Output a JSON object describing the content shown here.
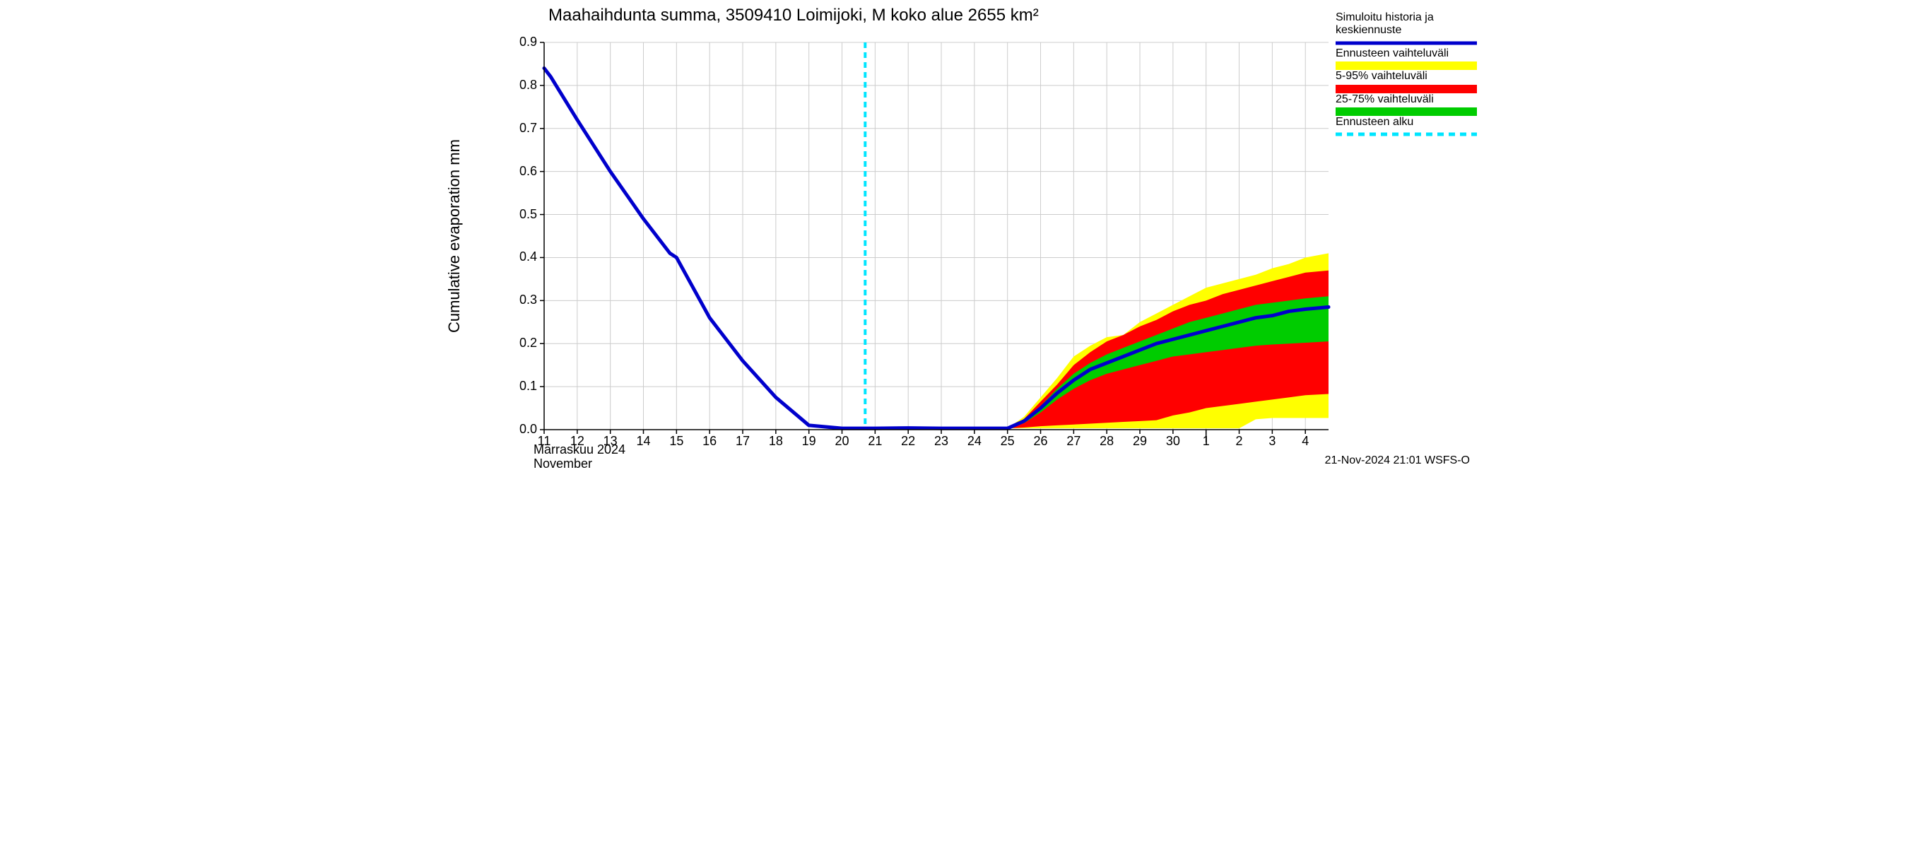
{
  "title": "Maahaihdunta summa, 3509410 Loimijoki, M koko alue 2655 km²",
  "ylabel": "Cumulative evaporation   mm",
  "x_month_fi": "Marraskuu 2024",
  "x_month_en": "November",
  "footer_timestamp": "21-Nov-2024 21:01 WSFS-O",
  "chart": {
    "type": "line_with_bands",
    "background_color": "#ffffff",
    "grid_color": "#cccccc",
    "axis_color": "#000000",
    "title_fontsize": 24,
    "label_fontsize": 18,
    "ylabel_fontsize": 22,
    "ylim": [
      0.0,
      0.9
    ],
    "yticks": [
      0.0,
      0.1,
      0.2,
      0.3,
      0.4,
      0.5,
      0.6,
      0.7,
      0.8,
      0.9
    ],
    "xlim_days": [
      11,
      34.7
    ],
    "xticks_days": [
      11,
      12,
      13,
      14,
      15,
      16,
      17,
      18,
      19,
      20,
      21,
      22,
      23,
      24,
      25,
      26,
      27,
      28,
      29,
      30,
      31,
      32,
      33,
      34
    ],
    "xtick_labels": [
      "11",
      "12",
      "13",
      "14",
      "15",
      "16",
      "17",
      "18",
      "19",
      "20",
      "21",
      "22",
      "23",
      "24",
      "25",
      "26",
      "27",
      "28",
      "29",
      "30",
      "1",
      "2",
      "3",
      "4"
    ],
    "month_boundary_day": 31,
    "forecast_start_day": 20.7,
    "forecast_line_color": "#00e5ff",
    "forecast_line_dash": "8,6",
    "forecast_line_width": 4,
    "series_blue": {
      "color": "#0000cc",
      "width": 5,
      "points": [
        [
          11.0,
          0.84
        ],
        [
          11.2,
          0.82
        ],
        [
          12.0,
          0.72
        ],
        [
          13.0,
          0.6
        ],
        [
          14.0,
          0.49
        ],
        [
          14.8,
          0.41
        ],
        [
          15.0,
          0.4
        ],
        [
          16.0,
          0.26
        ],
        [
          17.0,
          0.16
        ],
        [
          18.0,
          0.075
        ],
        [
          19.0,
          0.01
        ],
        [
          20.0,
          0.003
        ],
        [
          21.0,
          0.003
        ],
        [
          22.0,
          0.004
        ],
        [
          23.0,
          0.003
        ],
        [
          24.0,
          0.003
        ],
        [
          25.0,
          0.003
        ],
        [
          25.5,
          0.02
        ],
        [
          26.0,
          0.05
        ],
        [
          26.5,
          0.085
        ],
        [
          27.0,
          0.115
        ],
        [
          27.5,
          0.14
        ],
        [
          28.0,
          0.155
        ],
        [
          28.5,
          0.17
        ],
        [
          29.0,
          0.185
        ],
        [
          29.5,
          0.2
        ],
        [
          30.0,
          0.21
        ],
        [
          30.5,
          0.22
        ],
        [
          31.0,
          0.23
        ],
        [
          31.5,
          0.24
        ],
        [
          32.0,
          0.25
        ],
        [
          32.5,
          0.26
        ],
        [
          33.0,
          0.265
        ],
        [
          33.5,
          0.275
        ],
        [
          34.0,
          0.28
        ],
        [
          34.7,
          0.285
        ]
      ]
    },
    "band_yellow": {
      "color": "#ffff00",
      "upper": [
        [
          25.0,
          0.003
        ],
        [
          25.5,
          0.03
        ],
        [
          26.0,
          0.075
        ],
        [
          26.5,
          0.12
        ],
        [
          27.0,
          0.17
        ],
        [
          27.5,
          0.195
        ],
        [
          28.0,
          0.215
        ],
        [
          28.5,
          0.22
        ],
        [
          29.0,
          0.25
        ],
        [
          29.5,
          0.27
        ],
        [
          30.0,
          0.29
        ],
        [
          30.5,
          0.31
        ],
        [
          31.0,
          0.33
        ],
        [
          31.5,
          0.34
        ],
        [
          32.0,
          0.35
        ],
        [
          32.5,
          0.36
        ],
        [
          33.0,
          0.375
        ],
        [
          33.5,
          0.385
        ],
        [
          34.0,
          0.4
        ],
        [
          34.7,
          0.41
        ]
      ],
      "lower": [
        [
          25.0,
          0.003
        ],
        [
          25.5,
          0.003
        ],
        [
          26.0,
          0.003
        ],
        [
          26.5,
          0.003
        ],
        [
          27.0,
          0.003
        ],
        [
          27.5,
          0.003
        ],
        [
          28.0,
          0.003
        ],
        [
          28.5,
          0.003
        ],
        [
          29.0,
          0.003
        ],
        [
          29.5,
          0.003
        ],
        [
          30.0,
          0.003
        ],
        [
          30.5,
          0.003
        ],
        [
          31.0,
          0.003
        ],
        [
          31.5,
          0.003
        ],
        [
          32.0,
          0.003
        ],
        [
          32.5,
          0.024
        ],
        [
          33.0,
          0.027
        ],
        [
          33.5,
          0.027
        ],
        [
          34.0,
          0.027
        ],
        [
          34.7,
          0.027
        ]
      ]
    },
    "band_red": {
      "color": "#ff0000",
      "upper": [
        [
          25.0,
          0.003
        ],
        [
          25.5,
          0.025
        ],
        [
          26.0,
          0.065
        ],
        [
          26.5,
          0.105
        ],
        [
          27.0,
          0.15
        ],
        [
          27.5,
          0.18
        ],
        [
          28.0,
          0.205
        ],
        [
          28.5,
          0.22
        ],
        [
          29.0,
          0.24
        ],
        [
          29.5,
          0.255
        ],
        [
          30.0,
          0.275
        ],
        [
          30.5,
          0.29
        ],
        [
          31.0,
          0.3
        ],
        [
          31.5,
          0.315
        ],
        [
          32.0,
          0.325
        ],
        [
          32.5,
          0.335
        ],
        [
          33.0,
          0.345
        ],
        [
          33.5,
          0.355
        ],
        [
          34.0,
          0.365
        ],
        [
          34.7,
          0.37
        ]
      ],
      "lower": [
        [
          25.0,
          0.003
        ],
        [
          25.5,
          0.005
        ],
        [
          26.0,
          0.008
        ],
        [
          26.5,
          0.01
        ],
        [
          27.0,
          0.012
        ],
        [
          27.5,
          0.014
        ],
        [
          28.0,
          0.016
        ],
        [
          28.5,
          0.018
        ],
        [
          29.0,
          0.02
        ],
        [
          29.5,
          0.022
        ],
        [
          30.0,
          0.033
        ],
        [
          30.5,
          0.04
        ],
        [
          31.0,
          0.05
        ],
        [
          31.5,
          0.055
        ],
        [
          32.0,
          0.06
        ],
        [
          32.5,
          0.065
        ],
        [
          33.0,
          0.07
        ],
        [
          33.5,
          0.075
        ],
        [
          34.0,
          0.08
        ],
        [
          34.7,
          0.083
        ]
      ]
    },
    "band_green": {
      "color": "#00cc00",
      "upper": [
        [
          25.0,
          0.003
        ],
        [
          25.5,
          0.022
        ],
        [
          26.0,
          0.055
        ],
        [
          26.5,
          0.095
        ],
        [
          27.0,
          0.13
        ],
        [
          27.5,
          0.155
        ],
        [
          28.0,
          0.175
        ],
        [
          28.5,
          0.19
        ],
        [
          29.0,
          0.205
        ],
        [
          29.5,
          0.22
        ],
        [
          30.0,
          0.235
        ],
        [
          30.5,
          0.25
        ],
        [
          31.0,
          0.26
        ],
        [
          31.5,
          0.27
        ],
        [
          32.0,
          0.28
        ],
        [
          32.5,
          0.29
        ],
        [
          33.0,
          0.295
        ],
        [
          33.5,
          0.3
        ],
        [
          34.0,
          0.305
        ],
        [
          34.7,
          0.31
        ]
      ],
      "lower": [
        [
          25.0,
          0.003
        ],
        [
          25.5,
          0.015
        ],
        [
          26.0,
          0.04
        ],
        [
          26.5,
          0.07
        ],
        [
          27.0,
          0.095
        ],
        [
          27.5,
          0.115
        ],
        [
          28.0,
          0.13
        ],
        [
          28.5,
          0.14
        ],
        [
          29.0,
          0.15
        ],
        [
          29.5,
          0.16
        ],
        [
          30.0,
          0.17
        ],
        [
          30.5,
          0.175
        ],
        [
          31.0,
          0.18
        ],
        [
          31.5,
          0.185
        ],
        [
          32.0,
          0.19
        ],
        [
          32.5,
          0.195
        ],
        [
          33.0,
          0.198
        ],
        [
          33.5,
          0.2
        ],
        [
          34.0,
          0.202
        ],
        [
          34.7,
          0.205
        ]
      ]
    }
  },
  "legend": [
    {
      "label": "Simuloitu historia ja keskiennuste",
      "type": "line",
      "color": "#0000cc",
      "width": 5
    },
    {
      "label": "Ennusteen vaihteluväli",
      "type": "band",
      "color": "#ffff00"
    },
    {
      "label": "5-95% vaihteluväli",
      "type": "band",
      "color": "#ff0000"
    },
    {
      "label": "25-75% vaihteluväli",
      "type": "band",
      "color": "#00cc00"
    },
    {
      "label": "Ennusteen alku",
      "type": "dashed",
      "color": "#00e5ff",
      "width": 5,
      "dash": "9,7"
    }
  ]
}
